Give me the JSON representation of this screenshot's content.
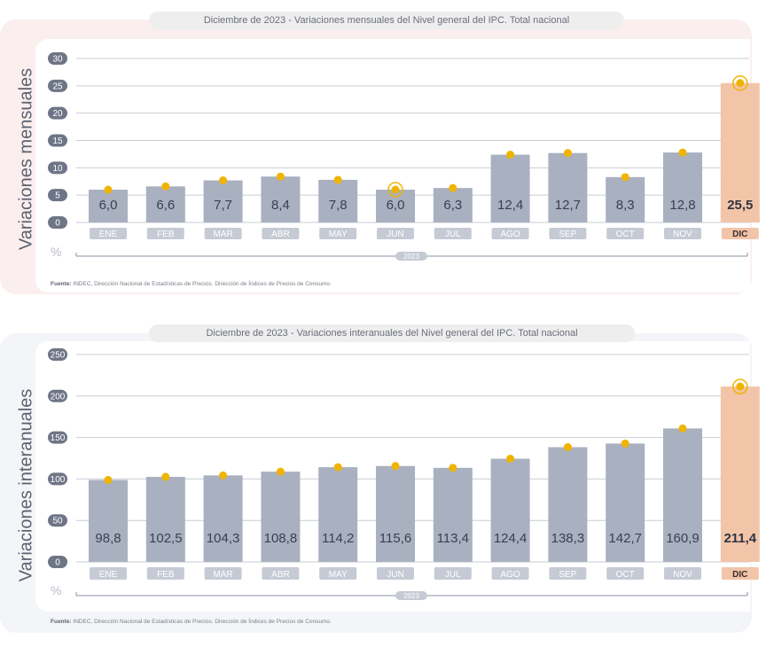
{
  "year_label": "2023",
  "unit": "%",
  "source": {
    "prefix": "Fuente:",
    "text": "INDEC, Dirección Nacional de Estadísticas de Precios. Dirección de Índices de Precios de Consumo."
  },
  "colors": {
    "bar": "#a9b0c0",
    "bar_highlight": "#f2c4a8",
    "dot": "#f0b400",
    "tick_badge": "#c6cad4",
    "tick_badge_highlight": "#f2c4a8"
  },
  "chart_data": [
    {
      "type": "bar",
      "title": "Diciembre de 2023 - Variaciones mensuales del Nivel general del IPC. Total nacional",
      "ylabel": "Variaciones mensuales",
      "categories": [
        "ENE",
        "FEB",
        "MAR",
        "ABR",
        "MAY",
        "JUN",
        "JUL",
        "AGO",
        "SEP",
        "OCT",
        "NOV",
        "DIC"
      ],
      "values": [
        6.0,
        6.6,
        7.7,
        8.4,
        7.8,
        6.0,
        6.3,
        12.4,
        12.7,
        8.3,
        12.8,
        25.5
      ],
      "value_labels": [
        "6,0",
        "6,6",
        "7,7",
        "8,4",
        "7,8",
        "6,0",
        "6,3",
        "12,4",
        "12,7",
        "8,3",
        "12,8",
        "25,5"
      ],
      "yticks": [
        "0",
        "5",
        "10",
        "15",
        "20",
        "25",
        "30"
      ],
      "ylim": [
        0,
        30
      ],
      "highlight_index": 11,
      "ring_indices": [
        5,
        11
      ],
      "grid": true
    },
    {
      "type": "bar",
      "title": "Diciembre de 2023 - Variaciones interanuales del Nivel general del IPC. Total nacional",
      "ylabel": "Variaciones interanuales",
      "categories": [
        "ENE",
        "FEB",
        "MAR",
        "ABR",
        "MAY",
        "JUN",
        "JUL",
        "AGO",
        "SEP",
        "OCT",
        "NOV",
        "DIC"
      ],
      "values": [
        98.8,
        102.5,
        104.3,
        108.8,
        114.2,
        115.6,
        113.4,
        124.4,
        138.3,
        142.7,
        160.9,
        211.4
      ],
      "value_labels": [
        "98,8",
        "102,5",
        "104,3",
        "108,8",
        "114,2",
        "115,6",
        "113,4",
        "124,4",
        "138,3",
        "142,7",
        "160,9",
        "211,4"
      ],
      "yticks": [
        "0",
        "50",
        "100",
        "150",
        "200",
        "250"
      ],
      "ylim": [
        0,
        250
      ],
      "highlight_index": 11,
      "ring_indices": [
        11
      ],
      "grid": true
    }
  ]
}
